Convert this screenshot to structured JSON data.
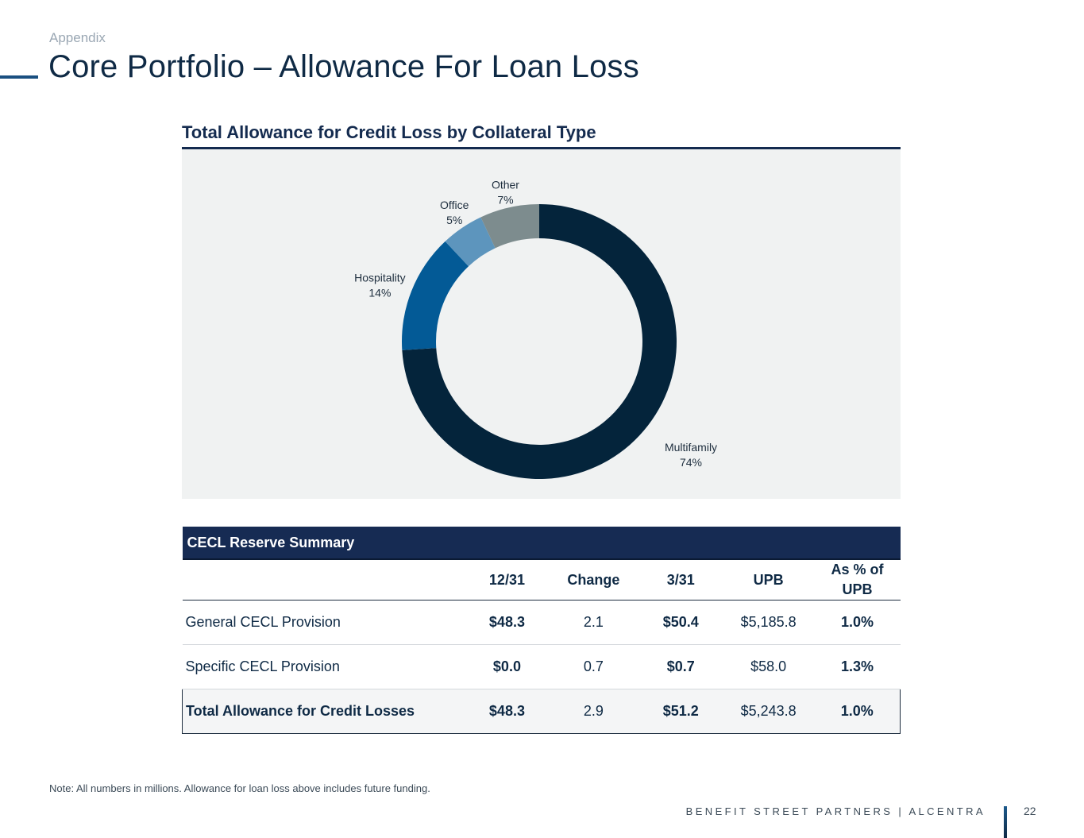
{
  "header": {
    "section": "Appendix",
    "title": "Core Portfolio – Allowance For Loan Loss"
  },
  "chart": {
    "title": "Total Allowance for Credit Loss by Collateral Type"
  },
  "chart_data": {
    "type": "pie",
    "donut": true,
    "title": "Total Allowance for Credit Loss by Collateral Type",
    "categories": [
      "Multifamily",
      "Hospitality",
      "Office",
      "Other"
    ],
    "values": [
      74,
      14,
      5,
      7
    ],
    "labels": [
      "74%",
      "14%",
      "5%",
      "7%"
    ],
    "colors": [
      "#04243b",
      "#035a96",
      "#5d95bd",
      "#7d8c8e"
    ]
  },
  "table": {
    "header": "CECL Reserve Summary",
    "columns": [
      "12/31",
      "Change",
      "3/31",
      "UPB",
      "As % of UPB"
    ],
    "rows": [
      {
        "label": "General CECL Provision",
        "v1231": "$48.3",
        "change": "2.1",
        "v331": "$50.4",
        "upb": "$5,185.8",
        "pct": "1.0%"
      },
      {
        "label": "Specific CECL Provision",
        "v1231": "$0.0",
        "change": "0.7",
        "v331": "$0.7",
        "upb": "$58.0",
        "pct": "1.3%"
      }
    ],
    "total": {
      "label": "Total Allowance for Credit Losses",
      "v1231": "$48.3",
      "change": "2.9",
      "v331": "$51.2",
      "upb": "$5,243.8",
      "pct": "1.0%"
    }
  },
  "footer": {
    "note": "Note: All numbers in millions. Allowance for loan loss above includes future funding.",
    "brand": "BENEFIT STREET PARTNERS | ALCENTRA",
    "page_number": "22"
  }
}
